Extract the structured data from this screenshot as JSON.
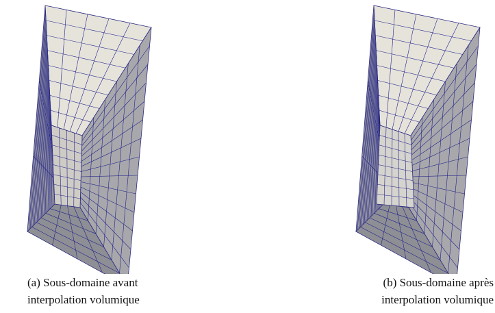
{
  "figures": [
    {
      "caption": [
        "(a) Sous-domaine avant",
        "interpolation volumique"
      ]
    },
    {
      "caption": [
        "(b) Sous-domaine après",
        "interpolation volumique"
      ]
    }
  ]
}
